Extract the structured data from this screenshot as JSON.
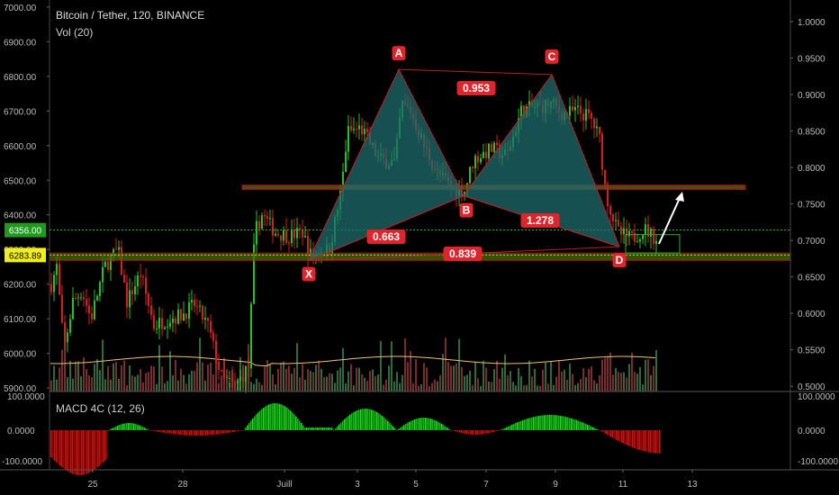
{
  "header": {
    "symbol_title": "Bitcoin / Tether, 120, BINANCE",
    "volume_label": "Vol (20)",
    "macd_label": "MACD 4C (12, 26)"
  },
  "colors": {
    "background": "#000000",
    "up": "#22c41f",
    "down": "#d81d1d",
    "pattern_fill": "#1f6b6b",
    "pattern_line": "#b8212a",
    "label_red": "#e0242c",
    "zone_fill": "#8a8a00",
    "support_line": "#22c41f",
    "arrow": "#ffffff",
    "volume_ma": "#f0c080"
  },
  "chart_data": {
    "type": "candlestick",
    "price_axis": {
      "ticks": [
        "7000.00",
        "6900.00",
        "6800.00",
        "6700.00",
        "6600.00",
        "6500.00",
        "6400.00",
        "6300.00",
        "6200.00",
        "6100.00",
        "6000.00",
        "5900.00"
      ],
      "range": [
        5890,
        7010
      ],
      "current_price_label": "6356.00",
      "level_label": "6283.89"
    },
    "ratio_axis": {
      "ticks": [
        "1.0000",
        "0.9500",
        "0.9000",
        "0.8500",
        "0.8000",
        "0.7500",
        "0.7000",
        "0.6500",
        "0.6000",
        "0.5500",
        "0.5000"
      ]
    },
    "macd_axis": {
      "left_ticks": [
        "100.0000",
        "0.0000",
        "-100.0000"
      ],
      "right_ticks": [
        "100.0000",
        "0.0000",
        "-100.0000"
      ]
    },
    "x_axis": {
      "ticks": [
        "25",
        "28",
        "Juill",
        "3",
        "5",
        "7",
        "9",
        "11",
        "13"
      ]
    },
    "harmonic_pattern": {
      "points": [
        {
          "label": "X",
          "price": 6268
        },
        {
          "label": "A",
          "price": 6820
        },
        {
          "label": "B",
          "price": 6455
        },
        {
          "label": "C",
          "price": 6805
        },
        {
          "label": "D",
          "price": 6308
        }
      ],
      "ratios": [
        "0.953",
        "0.663",
        "1.278",
        "0.839"
      ]
    },
    "zones": [
      {
        "name": "resistance",
        "low": 6473,
        "high": 6486
      },
      {
        "name": "support",
        "low": 6268,
        "high": 6290
      }
    ]
  }
}
